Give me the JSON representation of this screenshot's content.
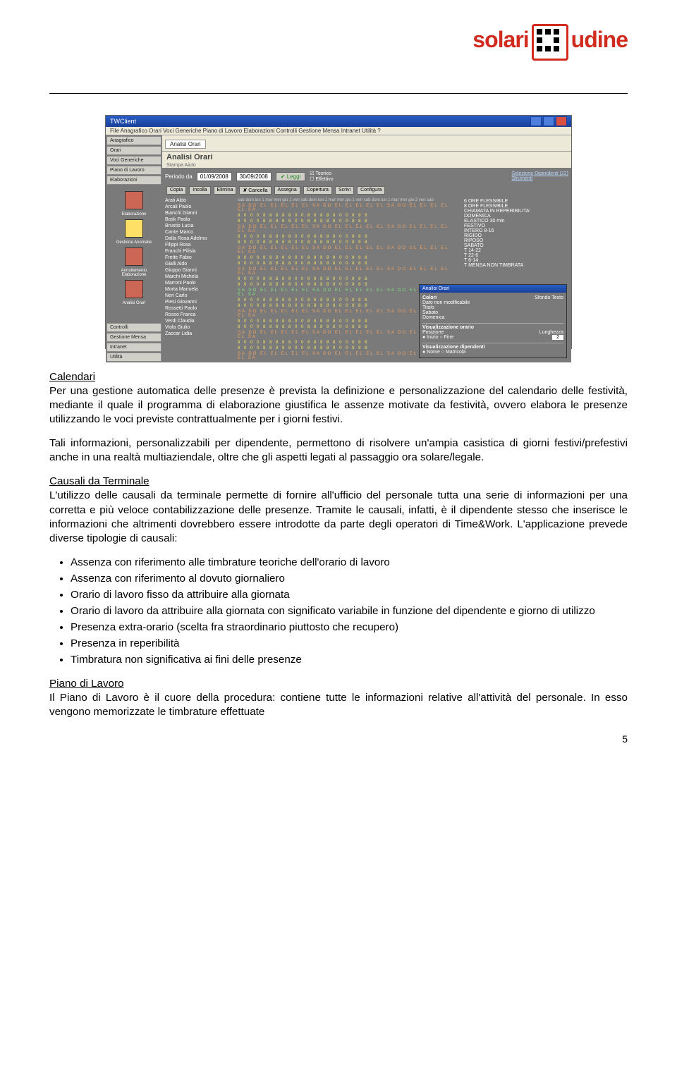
{
  "logo": {
    "left": "solari",
    "right": "udine"
  },
  "screenshot": {
    "window_title": "TWClient",
    "menubar": "File   Anagrafico   Orari   Voci Generiche   Piano di Lavoro   Elaborazioni   Controlli   Gestione Mensa   Intranet   Utilità   ?",
    "sidebar_buttons": [
      "Anagrafico",
      "Orari",
      "Voci Generiche",
      "Piano di Lavoro",
      "Elaborazioni"
    ],
    "sidebar_icons": [
      {
        "label": "Elaborazione"
      },
      {
        "label": "Gestione Anomalie"
      },
      {
        "label": "Annullamento Elaborazione"
      },
      {
        "label": "Analisi Orari"
      }
    ],
    "sidebar_bottom": [
      "Controlli",
      "Gestione Mensa",
      "Intranet",
      "Utilità"
    ],
    "tab": "Analisi Orari",
    "panel_title": "Analisi Orari",
    "panel_sub": "Stampa   Aiuto",
    "period_label": "Periodo da",
    "date_from": "01/09/2008",
    "date_to": "30/09/2008",
    "btn_leggi": "✔ Leggi",
    "chk_teorico": "Teorico",
    "chk_effettivo": "Effettivo",
    "link_sel": "Selezione Dipendenti (22)",
    "link_str": "Strumenti",
    "toolbar2": [
      "Copia",
      "Incolla",
      "Elimina",
      "✘ Cancella",
      "Assegna",
      "Copertura",
      "Scrivi",
      "Configura"
    ],
    "days_header": "sab dom lun 1 mar  mer  gio 1 ven  sab  dom lun 1 mar  mer  gio 1 ven  sab  dom lun 1 mar  mer  gio 2 ven  sab",
    "employees": [
      "Arati Aldo",
      "Arcali Paolo",
      "Bianchi Gianni",
      "Bosk Paola",
      "Brustio Lucia",
      "Cante Marco",
      "Dalla Rosa Adelmo",
      "Filippi Rosa",
      "Franchi Pilisia",
      "Frette Fabio",
      "Gialli Aldo",
      "Giuppo Gianni",
      "Marchi Michela",
      "Marroni Paolo",
      "Morta Manuela",
      "Neri Carlo",
      "Piesi Giovanni",
      "Rossetti Paolo",
      "Rosso Franca",
      "Verdi Claudia",
      "Viola Giulio",
      "Zaccar Lidia"
    ],
    "legend_items": [
      "6 ORE FLESSIBILE",
      "8 ORE FLESSIBILE",
      "CHIAMATA IN REPERIBILITA'",
      "DOMENICA",
      "ELASTICO 30 min",
      "FESTIVO",
      "INTERO 8-16",
      "RIGIDO",
      "RIPOSO",
      "SABATO",
      "T 14-22",
      "T 22-6",
      "T 6-14",
      "T MENSA NON TIMBRATA"
    ],
    "popup": {
      "title": "Analisi Orari",
      "h1": "Colori",
      "h1r": "Sfondo    Testo",
      "rows": [
        "Dato non modificabile",
        "Titolo",
        "Sabato",
        "Domenica"
      ],
      "sec2": "Visualizzazione orario",
      "pos": "Posizione",
      "lun": "Lunghezza",
      "oin": "● Inizio   ○ Fine",
      "lunv": "2",
      "sec3": "Visualizzazione dipendenti",
      "opt3": "● Nome   ○ Matricola"
    },
    "data_pattern_yellow": "8 0 0 0 8 8 8 8 8 0 0 8 8 8 8 8 0 0 8 8 8",
    "data_pattern_orange": "SA DO EL EL EL EL EL SA DO EL EL EL EL EL SA DO EL EL EL EL EL SA",
    "colors": {
      "title_bar": "#2a5fc4",
      "panel_bg": "#7a7a7a",
      "win_bg": "#ece9d8",
      "orange_text": "#f0a060",
      "green_text": "#80e080",
      "yellow_text": "#f0e060"
    }
  },
  "body": {
    "p1_title": "Calendari",
    "p1": "Per una gestione automatica delle presenze è prevista la definizione e personalizzazione del calendario delle festività, mediante il quale il programma di elaborazione giustifica le assenze motivate da festività, ovvero elabora le presenze utilizzando le voci previste contrattualmente per i giorni festivi.",
    "p2": "Tali informazioni, personalizzabili per dipendente, permettono di risolvere un'ampia casistica di giorni festivi/prefestivi anche in una realtà multiaziendale, oltre che gli aspetti legati al passaggio ora solare/legale.",
    "p3_title": "Causali da Terminale",
    "p3": "L'utilizzo delle causali da terminale permette di fornire all'ufficio del personale tutta una serie di informazioni per una corretta e più veloce contabilizzazione delle presenze. Tramite le causali, infatti, è il dipendente stesso che inserisce le informazioni che altrimenti dovrebbero essere introdotte da parte degli operatori di Time&Work. L'applicazione prevede diverse tipologie di causali:",
    "bullets": [
      "Assenza con riferimento alle timbrature teoriche dell'orario di lavoro",
      "Assenza con riferimento al dovuto giornaliero",
      "Orario di lavoro fisso da attribuire alla giornata",
      "Orario di lavoro da attribuire alla giornata con significato variabile in funzione del dipendente e giorno di utilizzo",
      "Presenza extra-orario (scelta fra straordinario piuttosto che recupero)",
      "Presenza in reperibilità",
      "Timbratura non significativa ai fini delle presenze"
    ],
    "p4_title": "Piano di Lavoro",
    "p4": "Il Piano di Lavoro è il cuore della procedura: contiene tutte le informazioni relative all'attività del personale. In esso vengono memorizzate le timbrature effettuate"
  },
  "page_number": "5"
}
